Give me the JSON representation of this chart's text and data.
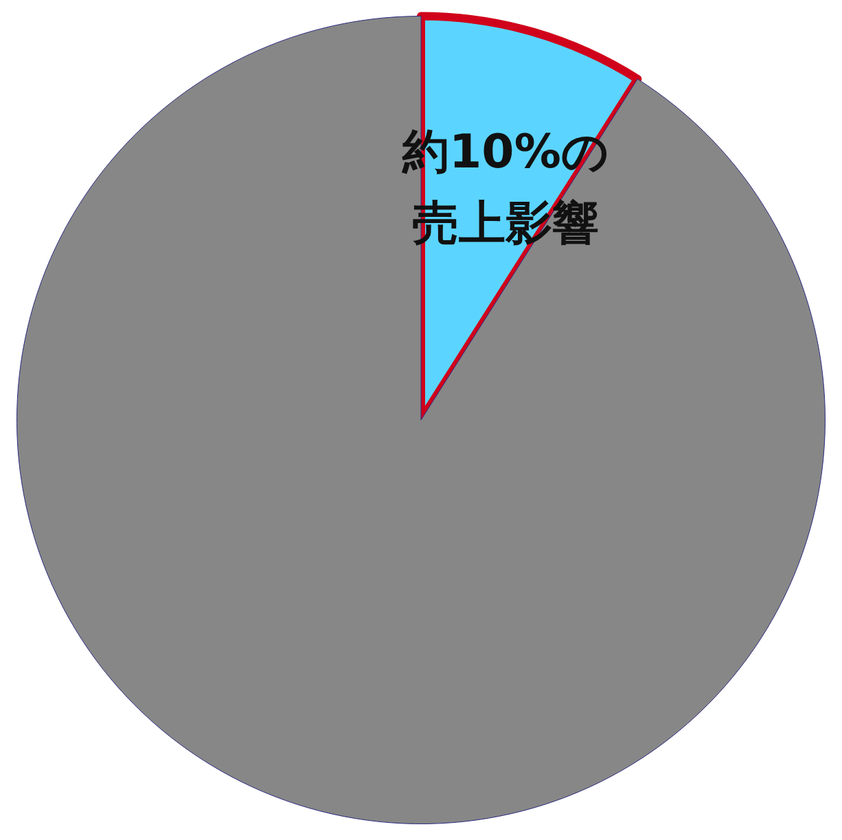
{
  "chart_data": {
    "type": "pie",
    "categories": [
      null,
      null
    ],
    "values": [
      9,
      91
    ],
    "colors": [
      "#5bd5ff",
      "#878787"
    ],
    "annotations": [
      "約10%の",
      "売上影響"
    ],
    "legend": false
  }
}
